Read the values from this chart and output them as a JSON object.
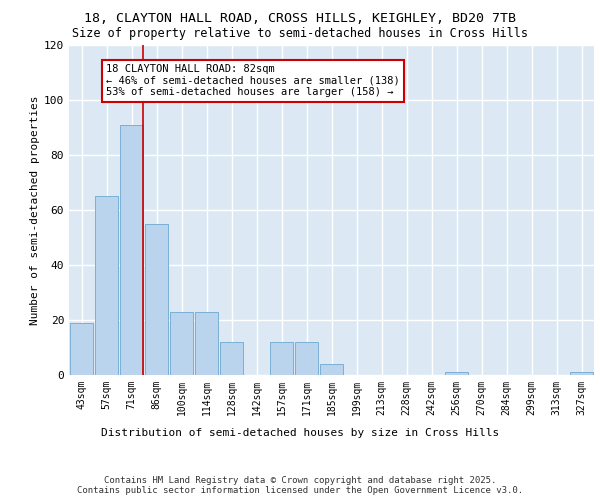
{
  "title_line1": "18, CLAYTON HALL ROAD, CROSS HILLS, KEIGHLEY, BD20 7TB",
  "title_line2": "Size of property relative to semi-detached houses in Cross Hills",
  "xlabel": "Distribution of semi-detached houses by size in Cross Hills",
  "ylabel": "Number of semi-detached properties",
  "categories": [
    "43sqm",
    "57sqm",
    "71sqm",
    "86sqm",
    "100sqm",
    "114sqm",
    "128sqm",
    "142sqm",
    "157sqm",
    "171sqm",
    "185sqm",
    "199sqm",
    "213sqm",
    "228sqm",
    "242sqm",
    "256sqm",
    "270sqm",
    "284sqm",
    "299sqm",
    "313sqm",
    "327sqm"
  ],
  "values": [
    19,
    65,
    91,
    55,
    23,
    23,
    12,
    0,
    12,
    12,
    4,
    0,
    0,
    0,
    0,
    1,
    0,
    0,
    0,
    0,
    1
  ],
  "bar_color": "#bad4ee",
  "bar_edge_color": "#7aafd4",
  "annotation_text_line1": "18 CLAYTON HALL ROAD: 82sqm",
  "annotation_text_line2": "← 46% of semi-detached houses are smaller (138)",
  "annotation_text_line3": "53% of semi-detached houses are larger (158) →",
  "annotation_box_color": "#ffffff",
  "annotation_box_edge_color": "#cc0000",
  "vline_color": "#cc0000",
  "vline_x": 2.45,
  "ylim": [
    0,
    120
  ],
  "yticks": [
    0,
    20,
    40,
    60,
    80,
    100,
    120
  ],
  "background_color": "#dce9f5",
  "plot_bg_color": "#dce9f5",
  "grid_color": "#ffffff",
  "footer_line1": "Contains HM Land Registry data © Crown copyright and database right 2025.",
  "footer_line2": "Contains public sector information licensed under the Open Government Licence v3.0.",
  "title_fontsize": 9.5,
  "subtitle_fontsize": 8.5,
  "annotation_fontsize": 7.5,
  "footer_fontsize": 6.5,
  "ylabel_fontsize": 8,
  "xlabel_fontsize": 8,
  "tick_fontsize": 7
}
